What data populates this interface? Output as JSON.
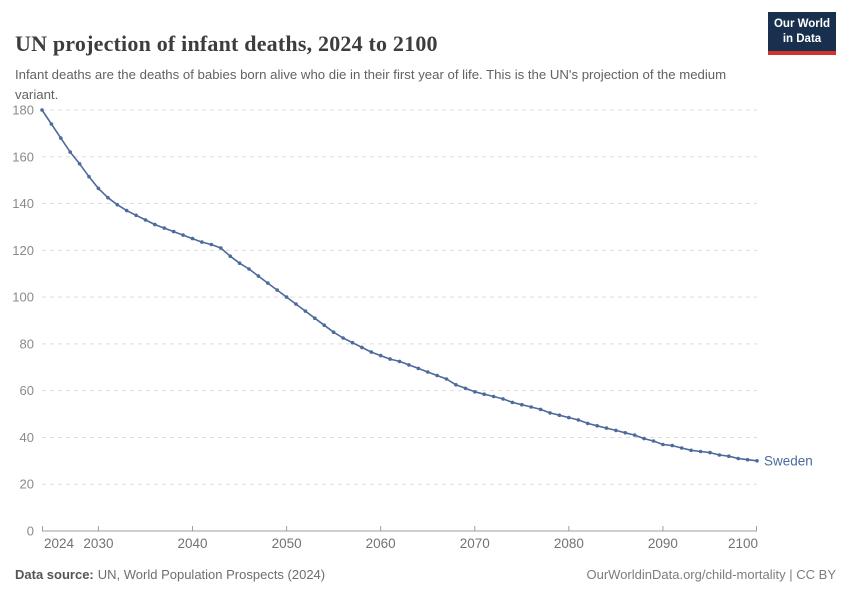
{
  "header": {
    "title": "UN projection of infant deaths, 2024 to 2100",
    "subtitle": "Infant deaths are the deaths of babies born alive who die in their first year of life. This is the UN's projection of the medium variant.",
    "logo": {
      "line1": "Our World",
      "line2": "in Data",
      "bg_color": "#18304e",
      "bar_color": "#d0342c"
    }
  },
  "chart_data": {
    "type": "line",
    "title": "UN projection of infant deaths, 2024 to 2100",
    "xlabel": "",
    "ylabel": "",
    "ylim": [
      0,
      180
    ],
    "yticks": [
      0,
      20,
      40,
      60,
      80,
      100,
      120,
      140,
      160,
      180
    ],
    "xticks": [
      2024,
      2030,
      2040,
      2050,
      2060,
      2070,
      2080,
      2090,
      2100
    ],
    "grid": "horizontal-dashed",
    "legend": "entity-label-at-line-end",
    "x": [
      2024,
      2025,
      2026,
      2027,
      2028,
      2029,
      2030,
      2031,
      2032,
      2033,
      2034,
      2035,
      2036,
      2037,
      2038,
      2039,
      2040,
      2041,
      2042,
      2043,
      2044,
      2045,
      2046,
      2047,
      2048,
      2049,
      2050,
      2051,
      2052,
      2053,
      2054,
      2055,
      2056,
      2057,
      2058,
      2059,
      2060,
      2061,
      2062,
      2063,
      2064,
      2065,
      2066,
      2067,
      2068,
      2069,
      2070,
      2071,
      2072,
      2073,
      2074,
      2075,
      2076,
      2077,
      2078,
      2079,
      2080,
      2081,
      2082,
      2083,
      2084,
      2085,
      2086,
      2087,
      2088,
      2089,
      2090,
      2091,
      2092,
      2093,
      2094,
      2095,
      2096,
      2097,
      2098,
      2099,
      2100
    ],
    "series": [
      {
        "name": "Sweden",
        "color": "#4c6a9c",
        "values": [
          180,
          174,
          168,
          162,
          157,
          151.5,
          146.5,
          142.5,
          139.5,
          137,
          135,
          133,
          131,
          129.5,
          128,
          126.5,
          125,
          123.5,
          122.5,
          121,
          117.5,
          114.5,
          112,
          109,
          106,
          103,
          100,
          97,
          94,
          91,
          88,
          85,
          82.5,
          80.5,
          78.5,
          76.5,
          75,
          73.5,
          72.5,
          71,
          69.5,
          68,
          66.5,
          65,
          62.5,
          61,
          59.5,
          58.5,
          57.5,
          56.5,
          55,
          54,
          53,
          52,
          50.5,
          49.5,
          48.5,
          47.5,
          46,
          45,
          44,
          43,
          42,
          41,
          39.5,
          38.5,
          37,
          36.5,
          35.5,
          34.5,
          34,
          33.5,
          32.5,
          32,
          31,
          30.5,
          30
        ]
      }
    ],
    "colors": {
      "line": "#4c6a9c",
      "gridline": "#dddddd",
      "axis_line": "#9e9e9e",
      "y_tick_label": "#8a8a8a",
      "x_tick_label": "#737373"
    }
  },
  "footer": {
    "source_label": "Data source:",
    "source_text": "UN, World Population Prospects (2024)",
    "attribution": "OurWorldinData.org/child-mortality | CC BY"
  }
}
